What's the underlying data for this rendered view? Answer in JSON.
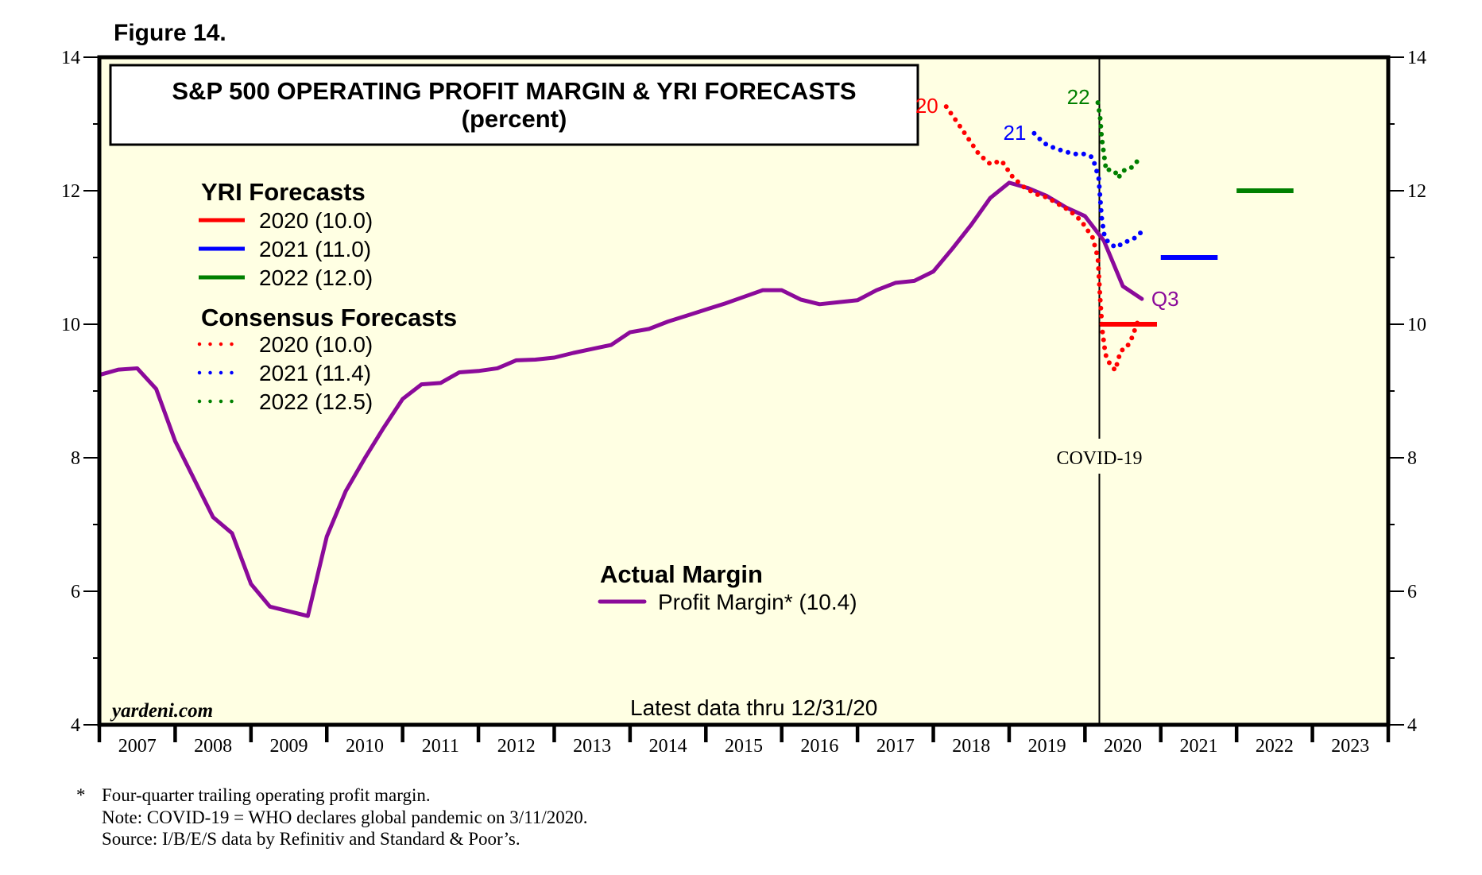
{
  "figure_label": "Figure 14.",
  "chart_data": {
    "type": "line",
    "title": "S&P 500 OPERATING PROFIT MARGIN & YRI FORECASTS",
    "subtitle": "(percent)",
    "xlabel": "",
    "ylabel": "percent",
    "xlim": [
      2007,
      2024
    ],
    "ylim": [
      4,
      14
    ],
    "grid": false,
    "y_ticks": [
      4,
      6,
      8,
      10,
      12,
      14
    ],
    "y_tick_labels": [
      "4",
      "6",
      "8",
      "10",
      "12",
      "14"
    ],
    "x_tick_labels": [
      "2007",
      "2008",
      "2009",
      "2010",
      "2011",
      "2012",
      "2013",
      "2014",
      "2015",
      "2016",
      "2017",
      "2018",
      "2019",
      "2020",
      "2021",
      "2022",
      "2023"
    ],
    "colors": {
      "background": "#ffffe3",
      "actual": "#8b0a9a",
      "y2020": "#ff0000",
      "y2021": "#0000ff",
      "y2022": "#008000"
    },
    "legend": {
      "yri_heading": "YRI Forecasts",
      "yri_items": [
        {
          "label": "2020 (10.0)",
          "color": "#ff0000"
        },
        {
          "label": "2021 (11.0)",
          "color": "#0000ff"
        },
        {
          "label": "2022 (12.0)",
          "color": "#008000"
        }
      ],
      "consensus_heading": "Consensus Forecasts",
      "consensus_items": [
        {
          "label": "2020 (10.0)",
          "color": "#ff0000"
        },
        {
          "label": "2021 (11.4)",
          "color": "#0000ff"
        },
        {
          "label": "2022 (12.5)",
          "color": "#008000"
        }
      ],
      "actual_heading": "Actual Margin",
      "actual_label": "Profit Margin* (10.4)",
      "placement": "left / center-bottom"
    },
    "series": [
      {
        "name": "Profit Margin* (actual, four-quarter trailing)",
        "style": "solid",
        "color": "#8b0a9a",
        "x_start": 2007.0,
        "x_step": 0.25,
        "values": [
          9.24,
          9.32,
          9.34,
          9.03,
          8.25,
          7.68,
          7.11,
          6.87,
          6.11,
          5.77,
          5.7,
          5.63,
          6.82,
          7.5,
          7.99,
          8.45,
          8.88,
          9.1,
          9.12,
          9.28,
          9.3,
          9.34,
          9.46,
          9.47,
          9.5,
          9.57,
          9.63,
          9.69,
          9.88,
          9.93,
          10.04,
          10.13,
          10.22,
          10.31,
          10.41,
          10.51,
          10.51,
          10.37,
          10.3,
          10.33,
          10.36,
          10.51,
          10.62,
          10.65,
          10.79,
          11.13,
          11.49,
          11.89,
          12.12,
          12.04,
          11.92,
          11.75,
          11.62,
          11.25,
          10.57,
          10.38
        ],
        "end_label": "Q3"
      },
      {
        "name": "Consensus 2020",
        "style": "dotted",
        "color": "#ff0000",
        "label": "20",
        "points": [
          [
            2018.17,
            13.26
          ],
          [
            2018.3,
            13.05
          ],
          [
            2018.45,
            12.8
          ],
          [
            2018.6,
            12.55
          ],
          [
            2018.75,
            12.4
          ],
          [
            2018.9,
            12.45
          ],
          [
            2019.05,
            12.2
          ],
          [
            2019.2,
            12.05
          ],
          [
            2019.35,
            11.95
          ],
          [
            2019.5,
            11.9
          ],
          [
            2019.65,
            11.8
          ],
          [
            2019.8,
            11.7
          ],
          [
            2019.95,
            11.55
          ],
          [
            2020.1,
            11.3
          ],
          [
            2020.17,
            11.0
          ],
          [
            2020.2,
            10.4
          ],
          [
            2020.23,
            9.9
          ],
          [
            2020.27,
            9.55
          ],
          [
            2020.33,
            9.4
          ],
          [
            2020.4,
            9.31
          ],
          [
            2020.47,
            9.6
          ],
          [
            2020.55,
            9.65
          ],
          [
            2020.62,
            9.8
          ],
          [
            2020.7,
            10.05
          ],
          [
            2020.75,
            10.05
          ]
        ],
        "final_value": 10.0
      },
      {
        "name": "Consensus 2021",
        "style": "dotted",
        "color": "#0000ff",
        "label": "21",
        "points": [
          [
            2019.33,
            12.86
          ],
          [
            2019.45,
            12.72
          ],
          [
            2019.55,
            12.66
          ],
          [
            2019.7,
            12.6
          ],
          [
            2019.85,
            12.55
          ],
          [
            2020.0,
            12.55
          ],
          [
            2020.1,
            12.5
          ],
          [
            2020.18,
            12.2
          ],
          [
            2020.2,
            11.9
          ],
          [
            2020.22,
            11.6
          ],
          [
            2020.26,
            11.3
          ],
          [
            2020.33,
            11.2
          ],
          [
            2020.42,
            11.15
          ],
          [
            2020.5,
            11.22
          ],
          [
            2020.58,
            11.25
          ],
          [
            2020.67,
            11.3
          ],
          [
            2020.75,
            11.39
          ]
        ],
        "final_value": 11.4
      },
      {
        "name": "Consensus 2022",
        "style": "dotted",
        "color": "#008000",
        "label": "22",
        "points": [
          [
            2020.17,
            13.32
          ],
          [
            2020.2,
            13.1
          ],
          [
            2020.22,
            12.8
          ],
          [
            2020.25,
            12.55
          ],
          [
            2020.28,
            12.3
          ],
          [
            2020.33,
            12.32
          ],
          [
            2020.4,
            12.28
          ],
          [
            2020.44,
            12.19
          ],
          [
            2020.5,
            12.3
          ],
          [
            2020.58,
            12.32
          ],
          [
            2020.65,
            12.38
          ],
          [
            2020.7,
            12.46
          ],
          [
            2020.75,
            12.46
          ]
        ],
        "final_value": 12.5
      },
      {
        "name": "YRI 2020",
        "style": "solid-bar",
        "color": "#ff0000",
        "x_range": [
          2020.2,
          2020.95
        ],
        "value": 10.0
      },
      {
        "name": "YRI 2021",
        "style": "solid-bar",
        "color": "#0000ff",
        "x_range": [
          2021.0,
          2021.75
        ],
        "value": 11.0
      },
      {
        "name": "YRI 2022",
        "style": "solid-bar",
        "color": "#008000",
        "x_range": [
          2022.0,
          2022.75
        ],
        "value": 12.0
      }
    ],
    "annotations": [
      {
        "text": "COVID-19",
        "x": 2020.19,
        "type": "vertical-line"
      },
      {
        "text": "Latest data thru 12/31/20"
      },
      {
        "text": "yardeni.com"
      }
    ]
  },
  "footnotes": {
    "star": "*",
    "line1": "Four-quarter trailing operating profit margin.",
    "line2": "Note: COVID-19 = WHO declares global pandemic on 3/11/2020.",
    "line3": "Source: I/B/E/S data by Refinitiv and Standard & Poor’s."
  }
}
